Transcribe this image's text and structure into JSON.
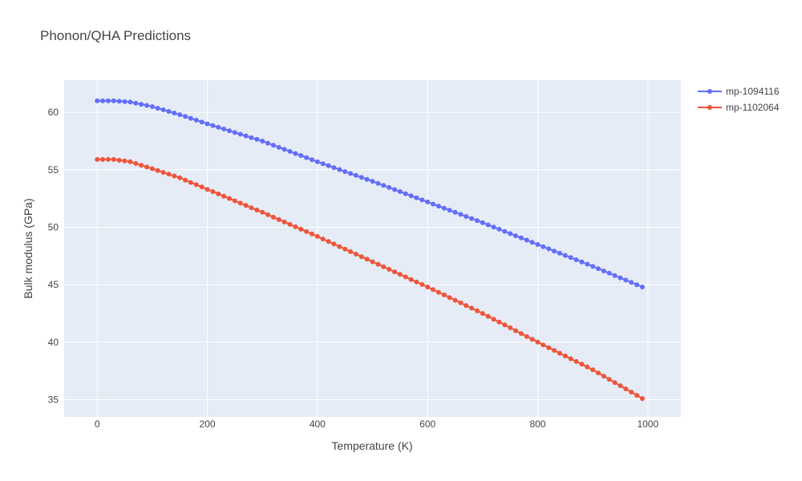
{
  "chart_data": {
    "type": "line",
    "title": "Phonon/QHA Predictions",
    "xlabel": "Temperature (K)",
    "ylabel": "Bulk modulus (GPa)",
    "xlim": [
      -60,
      1060
    ],
    "ylim": [
      33.5,
      62.8
    ],
    "xticks": [
      0,
      200,
      400,
      600,
      800,
      1000
    ],
    "yticks": [
      35,
      40,
      45,
      50,
      55,
      60
    ],
    "grid": true,
    "legend": "top-right",
    "series": [
      {
        "name": "mp-1094116",
        "color": "#636efa",
        "points": [
          [
            0,
            61.0
          ],
          [
            30,
            61.0
          ],
          [
            60,
            60.9
          ],
          [
            100,
            60.5
          ],
          [
            150,
            59.8
          ],
          [
            200,
            59.0
          ],
          [
            300,
            57.5
          ],
          [
            400,
            55.7
          ],
          [
            500,
            54.0
          ],
          [
            600,
            52.2
          ],
          [
            700,
            50.4
          ],
          [
            800,
            48.5
          ],
          [
            900,
            46.6
          ],
          [
            990,
            44.8
          ]
        ]
      },
      {
        "name": "mp-1102064",
        "color": "#ef553b",
        "points": [
          [
            0,
            55.9
          ],
          [
            30,
            55.9
          ],
          [
            60,
            55.7
          ],
          [
            100,
            55.1
          ],
          [
            150,
            54.3
          ],
          [
            200,
            53.3
          ],
          [
            300,
            51.3
          ],
          [
            400,
            49.2
          ],
          [
            500,
            47.0
          ],
          [
            600,
            44.8
          ],
          [
            700,
            42.5
          ],
          [
            800,
            40.0
          ],
          [
            900,
            37.6
          ],
          [
            990,
            35.1
          ]
        ]
      }
    ]
  }
}
